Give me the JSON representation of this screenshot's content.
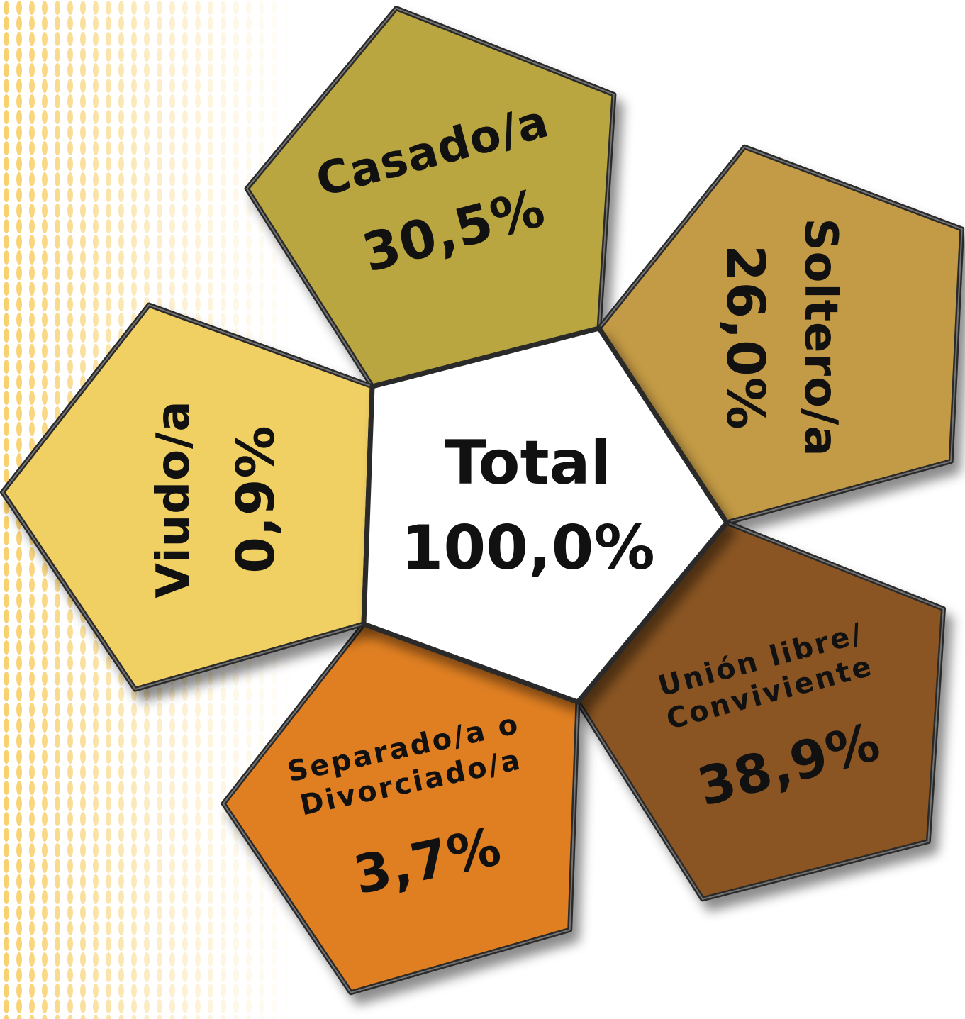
{
  "center": {
    "label": "Total",
    "value": "100,0%"
  },
  "segments": [
    {
      "id": "casado",
      "label": "Casado/a",
      "value": "30,5%",
      "color": "#b9a63f"
    },
    {
      "id": "soltero",
      "label": "Soltero/a",
      "value": "26,0%",
      "color": "#c39a45"
    },
    {
      "id": "union",
      "label_lines": [
        "Unión libre/",
        "Conviviente"
      ],
      "value": "38,9%",
      "color": "#8a5520"
    },
    {
      "id": "separado",
      "label_lines": [
        "Separado/a o",
        "Divorciado/a"
      ],
      "value": "3,7%",
      "color": "#e07f21"
    },
    {
      "id": "viudo",
      "label": "Viudo/a",
      "value": "0,9%",
      "color": "#f0cf63"
    }
  ]
}
